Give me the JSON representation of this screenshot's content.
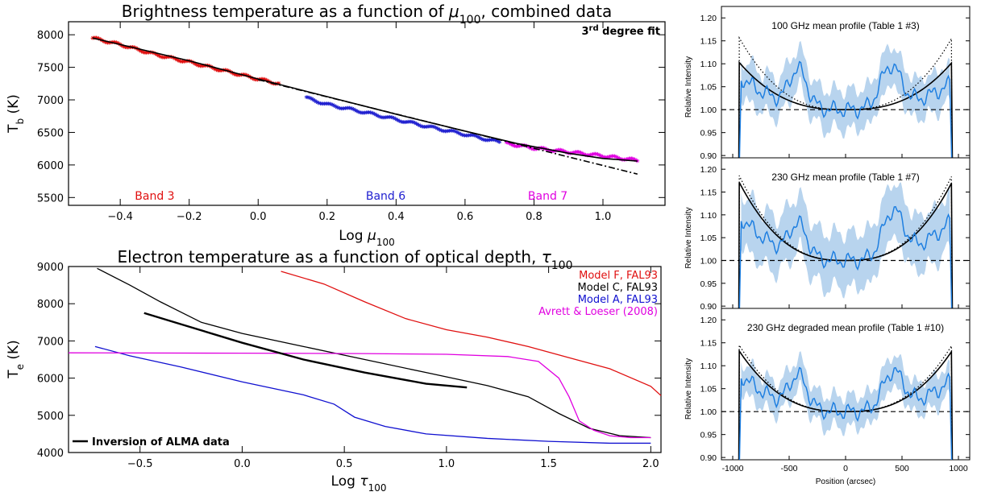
{
  "chart_data": [
    {
      "type": "scatter",
      "title_prefix": "Brightness temperature as a function of ",
      "title_sym": "μ",
      "title_sub": "100",
      "title_suffix": ", combined data",
      "xlabel_prefix": "Log ",
      "xlabel_sym": "μ",
      "xlabel_sub": "100",
      "ylabel_main": "T",
      "ylabel_sub": "b",
      "ylabel_suffix": " (K)",
      "xlim": [
        -0.55,
        1.18
      ],
      "ylim": [
        5380,
        8200
      ],
      "xticks": [
        -0.4,
        -0.2,
        0.0,
        0.2,
        0.4,
        0.6,
        0.8,
        1.0
      ],
      "xtick_labels": [
        "−0.4",
        "−0.2",
        "0.0",
        "0.2",
        "0.4",
        "0.6",
        "0.8",
        "1.0"
      ],
      "yticks": [
        5500,
        6000,
        6500,
        7000,
        7500,
        8000
      ],
      "ytick_labels": [
        "5500",
        "6000",
        "6500",
        "7000",
        "7500",
        "8000"
      ],
      "fit_label": "degree fit",
      "fit_label_sup": "rd",
      "fit_label_num": "3",
      "series": [
        {
          "name": "Band 3",
          "color": "#e01010",
          "x": [
            -0.48,
            -0.4,
            -0.3,
            -0.2,
            -0.1,
            0.0,
            0.06
          ],
          "y": [
            7950,
            7850,
            7700,
            7580,
            7450,
            7320,
            7250
          ]
        },
        {
          "name": "Band 6",
          "color": "#2020d0",
          "x": [
            0.14,
            0.2,
            0.3,
            0.4,
            0.5,
            0.6,
            0.7
          ],
          "y": [
            7030,
            6930,
            6820,
            6700,
            6580,
            6470,
            6350
          ]
        },
        {
          "name": "Band 7",
          "color": "#e000e0",
          "x": [
            0.72,
            0.8,
            0.9,
            1.0,
            1.1
          ],
          "y": [
            6330,
            6260,
            6200,
            6140,
            6070
          ]
        }
      ],
      "fit": {
        "x": [
          -0.48,
          -0.2,
          0.0,
          0.2,
          0.4,
          0.6,
          0.75,
          0.9,
          1.0,
          1.1
        ],
        "y": [
          7950,
          7600,
          7320,
          7050,
          6780,
          6520,
          6330,
          6180,
          6100,
          6060
        ]
      },
      "linear": {
        "x": [
          0.0,
          1.1
        ],
        "y": [
          7310,
          5860
        ]
      }
    },
    {
      "type": "line",
      "title_prefix": "Electron temperature as a function of optical depth, ",
      "title_sym": "τ",
      "title_sub": "100",
      "xlabel_prefix": "Log ",
      "xlabel_sym": "τ",
      "xlabel_sub": "100",
      "ylabel_main": "T",
      "ylabel_sub": "e",
      "ylabel_suffix": " (K)",
      "xlim": [
        -0.85,
        2.05
      ],
      "ylim": [
        4000,
        9000
      ],
      "xticks": [
        -0.5,
        0.0,
        0.5,
        1.0,
        1.5,
        2.0
      ],
      "xtick_labels": [
        "−0.5",
        "0.0",
        "0.5",
        "1.0",
        "1.5",
        "2.0"
      ],
      "yticks": [
        4000,
        5000,
        6000,
        7000,
        8000,
        9000
      ],
      "ytick_labels": [
        "4000",
        "5000",
        "6000",
        "7000",
        "8000",
        "9000"
      ],
      "series": [
        {
          "name": "Model F, FAL93",
          "color": "#e01010",
          "x": [
            0.19,
            0.4,
            0.6,
            0.8,
            1.0,
            1.2,
            1.4,
            1.6,
            1.8,
            2.0,
            2.05
          ],
          "y": [
            8870,
            8530,
            8050,
            7600,
            7300,
            7100,
            6850,
            6550,
            6250,
            5780,
            5530
          ]
        },
        {
          "name": "Model C, FAL93",
          "color": "#000000",
          "x": [
            -0.71,
            -0.55,
            -0.4,
            -0.2,
            0.0,
            0.3,
            0.6,
            0.9,
            1.2,
            1.4,
            1.55,
            1.7,
            1.85,
            2.0
          ],
          "y": [
            8950,
            8500,
            8050,
            7500,
            7200,
            6850,
            6500,
            6150,
            5800,
            5500,
            5050,
            4650,
            4450,
            4400
          ]
        },
        {
          "name": "Model A, FAL93",
          "color": "#1010d0",
          "x": [
            -0.72,
            -0.55,
            -0.3,
            0.0,
            0.3,
            0.45,
            0.55,
            0.7,
            0.9,
            1.2,
            1.5,
            1.8,
            2.0
          ],
          "y": [
            6850,
            6600,
            6300,
            5900,
            5550,
            5300,
            4950,
            4700,
            4500,
            4380,
            4300,
            4250,
            4250
          ]
        },
        {
          "name": "Avrett & Loeser (2008)",
          "color": "#e000e0",
          "x": [
            -0.85,
            0.0,
            0.6,
            1.0,
            1.3,
            1.45,
            1.55,
            1.6,
            1.65,
            1.72,
            1.8,
            1.9,
            2.0
          ],
          "y": [
            6680,
            6670,
            6660,
            6640,
            6580,
            6450,
            6000,
            5500,
            4850,
            4600,
            4450,
            4400,
            4400
          ]
        },
        {
          "name": "Inversion of ALMA data",
          "color": "#000000",
          "x": [
            -0.48,
            -0.3,
            0.0,
            0.3,
            0.6,
            0.9,
            1.1
          ],
          "y": [
            7750,
            7450,
            6950,
            6500,
            6150,
            5850,
            5750
          ]
        }
      ]
    },
    {
      "type": "line",
      "title": "100 GHz mean profile (Table 1 #3)",
      "ylabel": "Relative Intensity",
      "ylim": [
        0.895,
        1.225
      ],
      "yticks": [
        0.9,
        0.95,
        1.0,
        1.05,
        1.1,
        1.15,
        1.2
      ],
      "ytick_labels": [
        "0.90",
        "0.95",
        "1.00",
        "1.05",
        "1.10",
        "1.15",
        "1.20"
      ],
      "mean_peak_left": 1.075,
      "mean_peak_right": 1.06,
      "band_peak_left": 1.1,
      "band_peak_right": 1.09,
      "bump_left_center": -420,
      "bump_left_amp": 0.08,
      "bump_right_center": 400,
      "bump_right_amp": 0.09,
      "band_halfwidth": 0.05,
      "model_peak": 1.105,
      "dotted_peak": 1.16
    },
    {
      "type": "line",
      "title": "230 GHz mean profile (Table 1 #7)",
      "ylabel": "Relative Intensity",
      "ylim": [
        0.895,
        1.225
      ],
      "yticks": [
        0.9,
        0.95,
        1.0,
        1.05,
        1.1,
        1.15,
        1.2
      ],
      "ytick_labels": [
        "0.90",
        "0.95",
        "1.00",
        "1.05",
        "1.10",
        "1.15",
        "1.20"
      ],
      "mean_peak_left": 1.1,
      "mean_peak_right": 1.09,
      "band_peak_left": 1.14,
      "band_peak_right": 1.14,
      "bump_left_center": -420,
      "bump_left_amp": 0.07,
      "bump_right_center": 420,
      "bump_right_amp": 0.1,
      "band_halfwidth": 0.07,
      "model_peak": 1.175,
      "dotted_peak": 1.19
    },
    {
      "type": "line",
      "title": "230 GHz degraded mean profile (Table 1 #10)",
      "ylabel": "Relative Intensity",
      "xlabel": "Position (arcsec)",
      "xlim": [
        -1100,
        1100
      ],
      "xticks": [
        -1000,
        -500,
        0,
        500,
        1000
      ],
      "xtick_labels": [
        "-1000",
        "-500",
        "0",
        "500",
        "1000"
      ],
      "ylim": [
        0.895,
        1.225
      ],
      "yticks": [
        0.9,
        0.95,
        1.0,
        1.05,
        1.1,
        1.15,
        1.2
      ],
      "ytick_labels": [
        "0.90",
        "0.95",
        "1.00",
        "1.05",
        "1.10",
        "1.15",
        "1.20"
      ],
      "mean_peak_left": 1.085,
      "mean_peak_right": 1.07,
      "band_peak_left": 1.11,
      "band_peak_right": 1.1,
      "bump_left_center": -420,
      "bump_left_amp": 0.07,
      "bump_right_center": 420,
      "bump_right_amp": 0.08,
      "band_halfwidth": 0.04,
      "model_peak": 1.135,
      "dotted_peak": 1.148
    }
  ]
}
